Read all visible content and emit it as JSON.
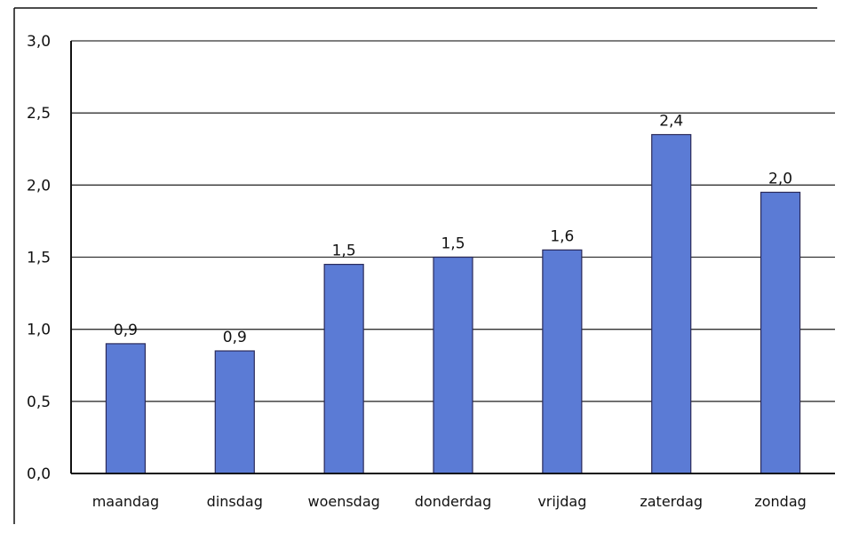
{
  "chart_data": {
    "type": "bar",
    "categories": [
      "maandag",
      "dinsdag",
      "woensdag",
      "donderdag",
      "vrijdag",
      "zaterdag",
      "zondag"
    ],
    "values": [
      0.9,
      0.85,
      1.45,
      1.5,
      1.55,
      2.35,
      1.95
    ],
    "data_labels": [
      "0,9",
      "0,9",
      "1,5",
      "1,5",
      "1,6",
      "2,4",
      "2,0"
    ],
    "y_ticks": [
      0.0,
      0.5,
      1.0,
      1.5,
      2.0,
      2.5,
      3.0
    ],
    "y_tick_labels": [
      "0,0",
      "0,5",
      "1,0",
      "1,5",
      "2,0",
      "2,5",
      "3,0"
    ],
    "ylim": [
      0,
      3.0
    ],
    "grid": true,
    "legend": "none",
    "title": "",
    "xlabel": "",
    "ylabel": "",
    "colors": {
      "bar": "#5b7bd5",
      "bar_edge": "#2a2a5a",
      "grid": "#333333",
      "axis": "#111111",
      "text": "#111111"
    }
  }
}
